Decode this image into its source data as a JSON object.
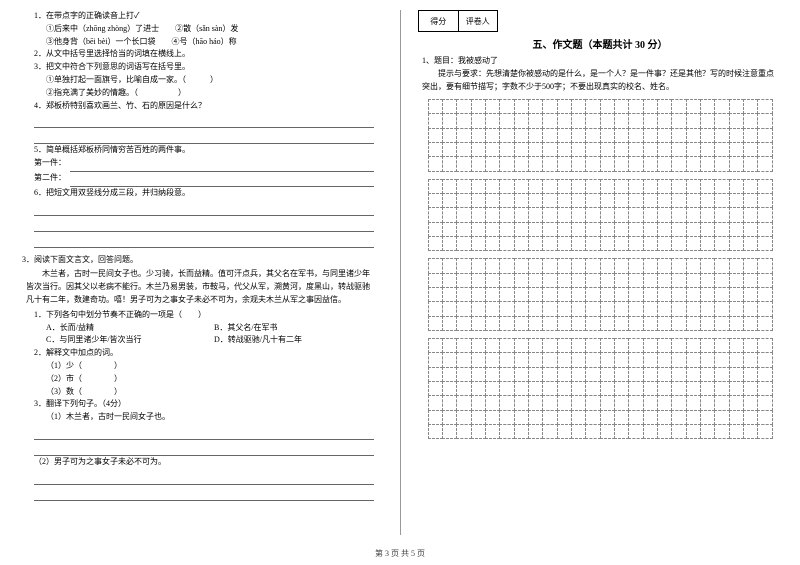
{
  "left": {
    "q1": "1．在带点字的正确读音上打✓",
    "q1a": "①后来中（zhōng zhòng）了进士　　②散（sǎn sàn）发",
    "q1b": "③他身背（bēi bèi）一个长口袋　　④号（hāo háo）称",
    "q2": "2．从文中括号里选择恰当的词填在横线上。",
    "q3": "3．把文中符合下列意思的词语写在括号里。",
    "q3a": "①单独打起一面旗号，比喻自成一家。（　　　）",
    "q3b": "②指充满了美妙的情趣。（　　　　　）",
    "q4": "4．郑板桥特别喜欢画兰、竹、石的原因是什么？",
    "q5": "5．简单概括郑板桥同情穷苦百姓的两件事。",
    "q5a": "第一件：",
    "q5b": "第二件：",
    "q6": "6．把短文用双竖线分成三段，并归纳段意。",
    "p3": "3．阅读下面文言文，回答问题。",
    "passage": "木兰者，古时一民间女子也。少习骑，长而益精。值可汗点兵，其父名在军书，与同里诸少年皆次当行。因其父以老病不能行。木兰乃易男装，市鞍马，代父从军，溯黄河，度黑山，转战驱驰凡十有二年，数建奇功。嘻！男子可为之事女子未必不可为，余观夫木兰从军之事因益信。",
    "s1": "1．下列各句中划分节奏不正确的一项是（　　）",
    "s1a": "A．长而/益精",
    "s1b": "B．其父名/在军书",
    "s1c": "C．与同里诸少年/皆次当行",
    "s1d": "D．转战驱驰/凡十有二年",
    "s2": "2．解释文中加点的词。",
    "s2a": "（1）少（　　　　）",
    "s2b": "（2）市（　　　　）",
    "s2c": "（3）数（　　　　）",
    "s3": "3．翻译下列句子。（4分）",
    "s3a": "（1）木兰者，古时一民间女子也。",
    "s3b": "（2）男子可为之事女子未必不可为。"
  },
  "right": {
    "score_a": "得分",
    "score_b": "评卷人",
    "title": "五、作文题（本题共计 30 分）",
    "q1": "1、题目：我被感动了",
    "tip": "提示与要求：先想清楚你被感动的是什么，是一个人？是一件事？还是其他？写的时候注意重点突出，要有细节描写；字数不少于500字；不要出现真实的校名、姓名。"
  },
  "footer": "第 3 页 共 5 页",
  "grid": {
    "cols": 24,
    "blocks": [
      5,
      5,
      5,
      7
    ]
  }
}
